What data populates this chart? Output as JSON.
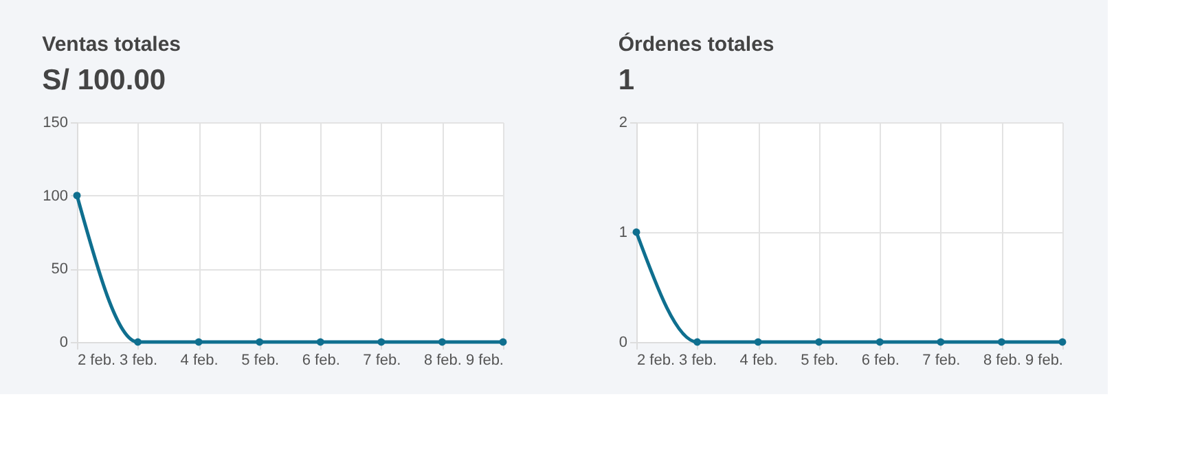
{
  "chart_data": [
    {
      "type": "line",
      "title": "Ventas totales",
      "subtitle": "S/ 100.00",
      "categories": [
        "2 feb.",
        "3 feb.",
        "4 feb.",
        "5 feb.",
        "6 feb.",
        "7 feb.",
        "8 feb.",
        "9 feb."
      ],
      "series": [
        {
          "color": "#0f6f8f",
          "values": [
            100,
            0,
            0,
            0,
            0,
            0,
            0,
            0
          ]
        }
      ],
      "ylim": [
        0,
        150
      ],
      "yticks": [
        0,
        50,
        100,
        150
      ],
      "grid": true,
      "marker": "circle",
      "line_style": "solid"
    },
    {
      "type": "line",
      "title": "Órdenes totales",
      "subtitle": "1",
      "categories": [
        "2 feb.",
        "3 feb.",
        "4 feb.",
        "5 feb.",
        "6 feb.",
        "7 feb.",
        "8 feb.",
        "9 feb."
      ],
      "series": [
        {
          "color": "#0f6f8f",
          "values": [
            1,
            0,
            0,
            0,
            0,
            0,
            0,
            0
          ]
        }
      ],
      "ylim": [
        0,
        2
      ],
      "yticks": [
        0,
        1,
        2
      ],
      "grid": true,
      "marker": "circle",
      "line_style": "solid"
    }
  ]
}
